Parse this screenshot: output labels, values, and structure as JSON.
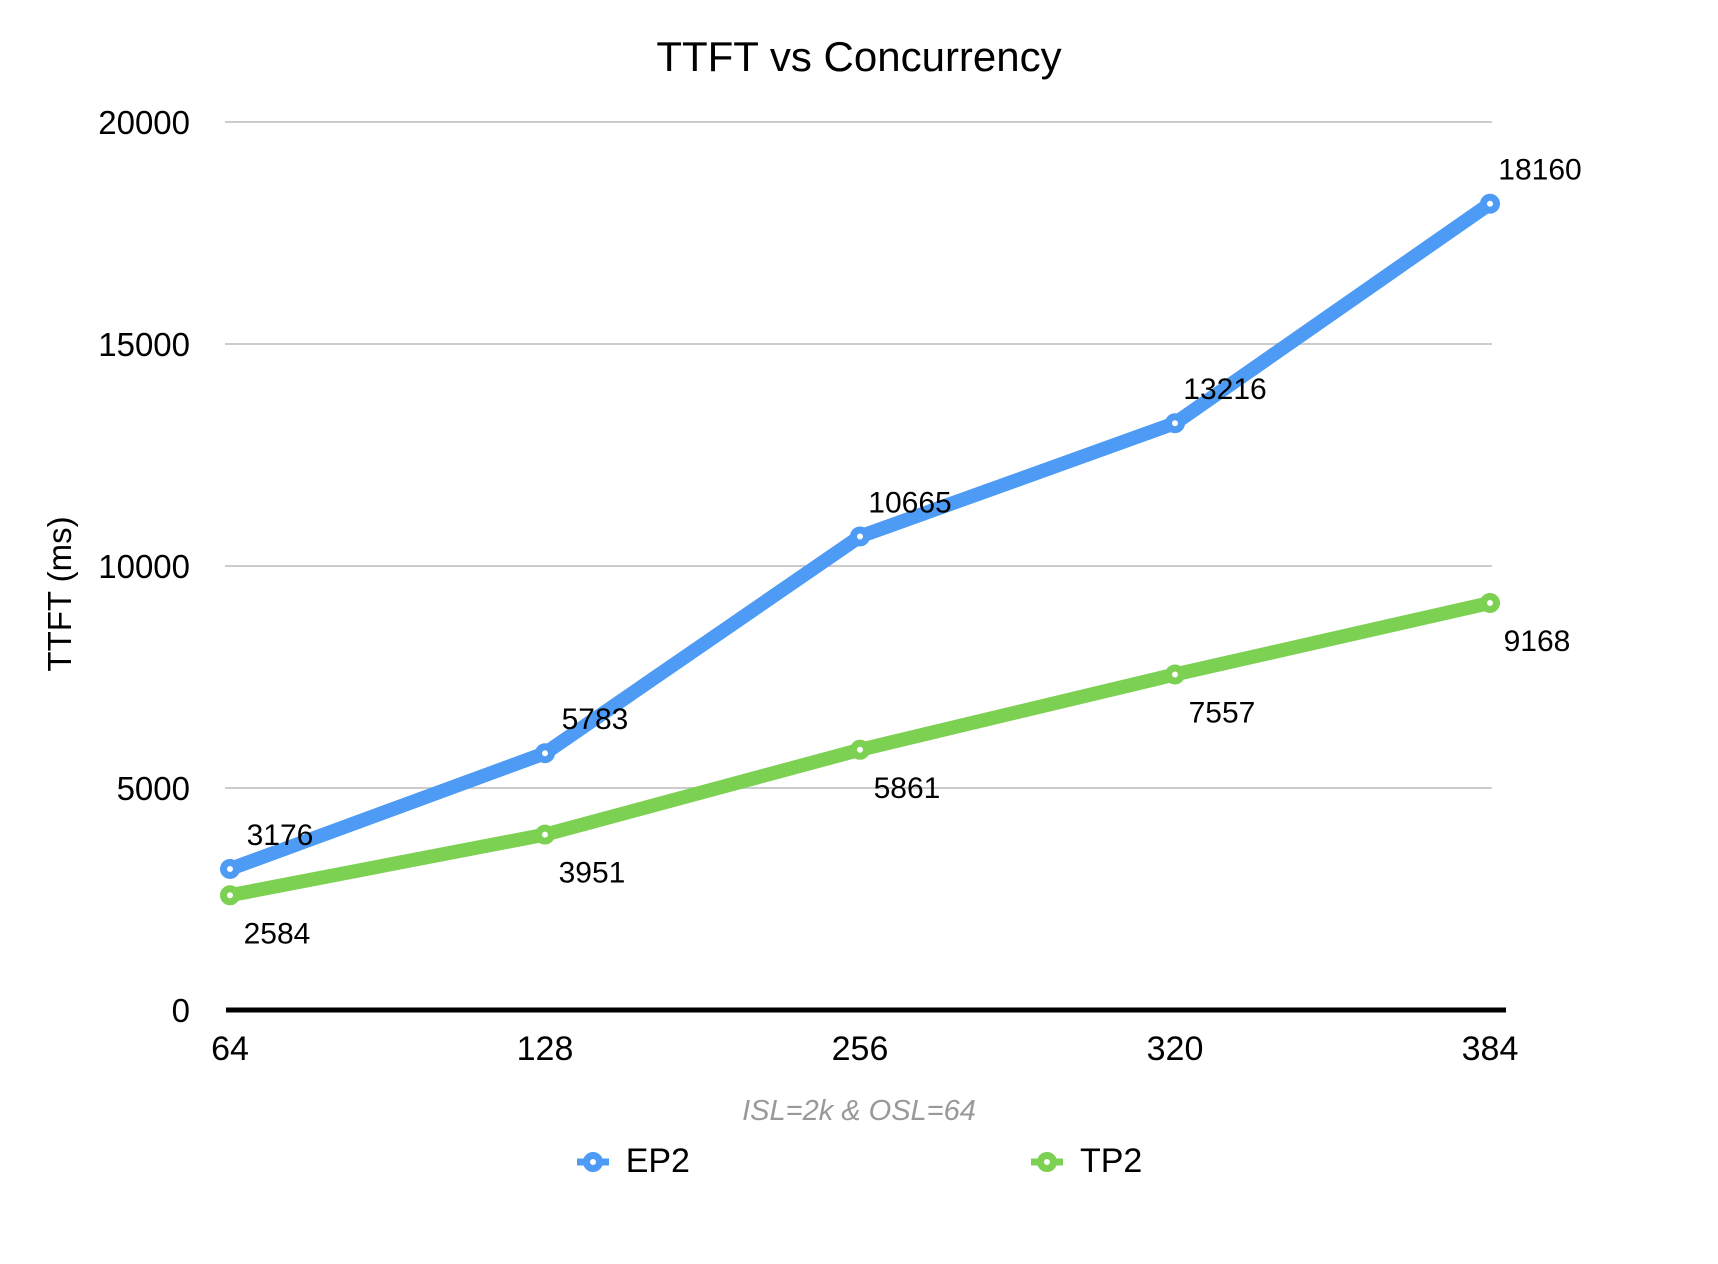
{
  "chart_data": {
    "type": "line",
    "title": "TTFT vs Concurrency",
    "ylabel": "TTFT (ms)",
    "xlabel": "",
    "footnote": "ISL=2k & OSL=64",
    "categories": [
      "64",
      "128",
      "256",
      "320",
      "384"
    ],
    "series": [
      {
        "name": "EP2",
        "color": "#4D9BF5",
        "values": [
          3176,
          5783,
          10665,
          13216,
          18160
        ],
        "label_placement": "above"
      },
      {
        "name": "TP2",
        "color": "#7CD052",
        "values": [
          2584,
          3951,
          5861,
          7557,
          9168
        ],
        "label_placement": "below"
      }
    ],
    "y_ticks": [
      "0",
      "5000",
      "10000",
      "15000",
      "20000"
    ],
    "ylim": [
      0,
      20000
    ],
    "grid": true,
    "legend_position": "bottom",
    "colors": {
      "gridline": "#cccccc",
      "axis": "#000000",
      "title_text": "#000000",
      "tick_text": "#000000",
      "data_label_text": "#000000",
      "footnote_text": "#999999",
      "marker_fill": "#ffffff"
    }
  }
}
